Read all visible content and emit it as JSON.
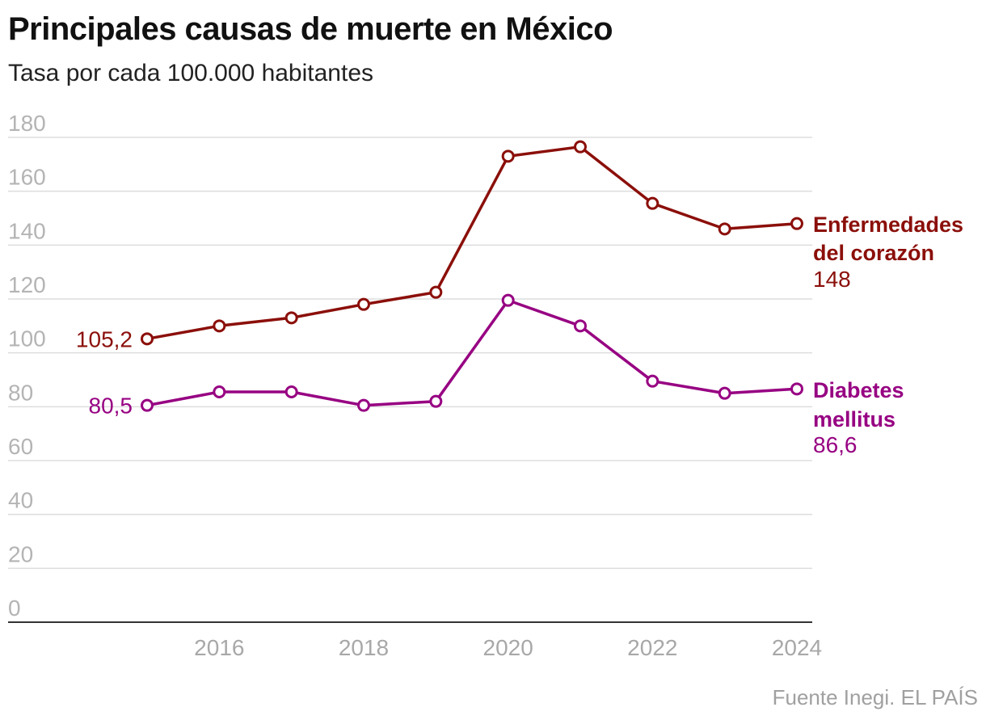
{
  "title": "Principales causas de muerte en México",
  "subtitle": "Tasa por cada 100.000 habitantes",
  "source": "Fuente Inegi. EL PAÍS",
  "chart_data": {
    "type": "line",
    "title": "Principales causas de muerte en México",
    "subtitle": "Tasa por cada 100.000 habitantes",
    "xlabel": "",
    "ylabel": "",
    "ylim": [
      0,
      180
    ],
    "xlim": [
      2015,
      2024
    ],
    "yticks": [
      0,
      20,
      40,
      60,
      80,
      100,
      120,
      140,
      160,
      180
    ],
    "xticks": [
      2016,
      2018,
      2020,
      2022,
      2024
    ],
    "x": [
      2015,
      2016,
      2017,
      2018,
      2019,
      2020,
      2021,
      2022,
      2023,
      2024
    ],
    "grid": true,
    "legend": "direct labels at line ends",
    "series": [
      {
        "name_lines": [
          "Enfermedades",
          "del corazón"
        ],
        "color": "#8b0f0a",
        "start_label": "105,2",
        "end_label": "148",
        "values": [
          105.2,
          110,
          113,
          118,
          122.5,
          173,
          176.5,
          155.5,
          146,
          148
        ]
      },
      {
        "name_lines": [
          "Diabetes",
          "mellitus"
        ],
        "color": "#970282",
        "start_label": "80,5",
        "end_label": "86,6",
        "values": [
          80.5,
          85.5,
          85.5,
          80.5,
          82,
          119.5,
          110,
          89.5,
          85,
          86.6
        ]
      }
    ]
  }
}
